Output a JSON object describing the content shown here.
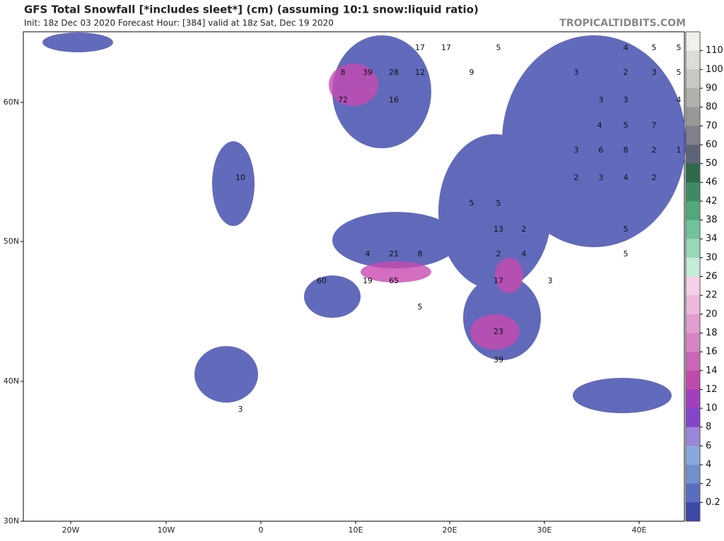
{
  "header": {
    "title": "GFS Total Snowfall [*includes sleet*] (cm) (assuming 10:1 snow:liquid ratio)",
    "subtitle": "Init: 18z Dec 03 2020   Forecast Hour: [384]   valid at 18z Sat, Dec 19 2020",
    "site": "TROPICALTIDBITS.COM"
  },
  "axes": {
    "lon_labels": [
      "20W",
      "10W",
      "0",
      "10E",
      "20E",
      "30E",
      "40E"
    ],
    "lat_labels": [
      "60N",
      "50N",
      "40N",
      "30N"
    ]
  },
  "colorbar": {
    "levels": [
      110,
      100,
      90,
      80,
      70,
      60,
      50,
      46,
      42,
      38,
      34,
      30,
      26,
      22,
      20,
      18,
      16,
      14,
      12,
      10,
      8,
      6,
      4,
      2,
      0.2
    ],
    "colors": [
      "#f0f0ea",
      "#dcdcd6",
      "#c8c8c2",
      "#b0b0ac",
      "#989896",
      "#80808a",
      "#5d6478",
      "#2f6a4c",
      "#3e8a62",
      "#52a87a",
      "#72c29a",
      "#98d8b8",
      "#c4ecd8",
      "#f4d0e8",
      "#ebb8dc",
      "#e29ed0",
      "#d884c4",
      "#cc66b8",
      "#c04aac",
      "#a23ec0",
      "#8446c8",
      "#9a86d8",
      "#88a8dc",
      "#7090cc",
      "#5a6ec0",
      "#3e48a8"
    ]
  },
  "map_labels": [
    17,
    17,
    39,
    28,
    12,
    8,
    72,
    16,
    5,
    4,
    5,
    5,
    9,
    3,
    2,
    3,
    5,
    3,
    3,
    4,
    4,
    5,
    7,
    3,
    6,
    8,
    2,
    1,
    2,
    3,
    4,
    2,
    10,
    5,
    5,
    13,
    2,
    5,
    5,
    4,
    21,
    8,
    2,
    4,
    60,
    19,
    65,
    17,
    3,
    23,
    39,
    5,
    3
  ]
}
